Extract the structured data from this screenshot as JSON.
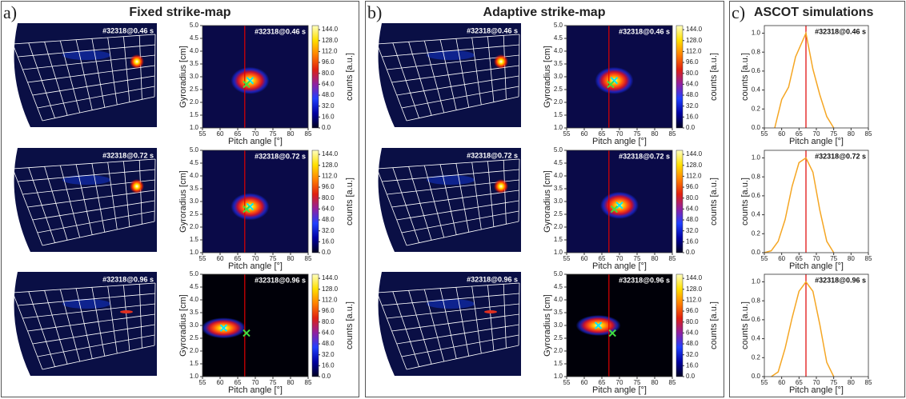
{
  "panels": [
    {
      "label": "a)",
      "title": "Fixed strike-map"
    },
    {
      "label": "b)",
      "title": "Adaptive strike-map"
    },
    {
      "label": "c)",
      "title": "ASCOT simulations"
    }
  ],
  "chart_data": [
    {
      "type": "heatmap",
      "image_label": "#32318@0.46 s",
      "label": "#32318@0.46 s",
      "xlabel": "Pitch angle [°]",
      "ylabel": "Gyroradius [cm]",
      "colorbar_label": "counts [a.u.]",
      "xlim": [
        55,
        85
      ],
      "ylim": [
        1,
        5
      ],
      "xticks": [
        55,
        60,
        65,
        70,
        75,
        80,
        85
      ],
      "yticks": [
        {
          "value": 1,
          "label": "1.0"
        },
        {
          "value": 1.5,
          "label": "1.5"
        },
        {
          "value": 2,
          "label": "2.0"
        },
        {
          "value": 2.5,
          "label": "2.5"
        },
        {
          "value": 3,
          "label": "3.0"
        },
        {
          "value": 3.5,
          "label": "3.5"
        },
        {
          "value": 4,
          "label": "4.0"
        },
        {
          "value": 4.5,
          "label": "4.5"
        },
        {
          "value": 5,
          "label": "5.0"
        }
      ],
      "clim": [
        0,
        150
      ],
      "cticks": [
        {
          "value": 0,
          "label": "0.0"
        },
        {
          "value": 16,
          "label": "16.0"
        },
        {
          "value": 32,
          "label": "32.0"
        },
        {
          "value": 48,
          "label": "48.0"
        },
        {
          "value": 64,
          "label": "64.0"
        },
        {
          "value": 80,
          "label": "80.0"
        },
        {
          "value": 96,
          "label": "96.0"
        },
        {
          "value": 112,
          "label": "112.0"
        },
        {
          "value": 128,
          "label": "128.0"
        },
        {
          "value": 144,
          "label": "144.0"
        }
      ],
      "colormap": [
        "#000020",
        "#0000a0",
        "#2040ff",
        "#9020a0",
        "#e02010",
        "#ff8000",
        "#ffe000",
        "#ffffc0"
      ],
      "background": "#0a0a48",
      "reference_x": 67,
      "reference_color": "#e00000",
      "markers": [
        {
          "x": 68.5,
          "y": 2.85,
          "color": "#00e5ff"
        },
        {
          "x": 67.5,
          "y": 2.7,
          "color": "#40e040"
        }
      ]
    },
    {
      "type": "heatmap",
      "image_label": "#32318@0.72 s",
      "label": "#32318@0.72 s",
      "xlabel": "Pitch angle [°]",
      "ylabel": "Gyroradius [cm]",
      "colorbar_label": "counts [a.u.]",
      "xlim": [
        55,
        85
      ],
      "ylim": [
        1,
        5
      ],
      "xticks": [
        55,
        60,
        65,
        70,
        75,
        80,
        85
      ],
      "yticks": [
        {
          "value": 1,
          "label": "1.0"
        },
        {
          "value": 1.5,
          "label": "1.5"
        },
        {
          "value": 2,
          "label": "2.0"
        },
        {
          "value": 2.5,
          "label": "2.5"
        },
        {
          "value": 3,
          "label": "3.0"
        },
        {
          "value": 3.5,
          "label": "3.5"
        },
        {
          "value": 4,
          "label": "4.0"
        },
        {
          "value": 4.5,
          "label": "4.5"
        },
        {
          "value": 5,
          "label": "5.0"
        }
      ],
      "clim": [
        0,
        150
      ],
      "cticks": [
        {
          "value": 0,
          "label": "0.0"
        },
        {
          "value": 16,
          "label": "16.0"
        },
        {
          "value": 32,
          "label": "32.0"
        },
        {
          "value": 48,
          "label": "48.0"
        },
        {
          "value": 64,
          "label": "64.0"
        },
        {
          "value": 80,
          "label": "80.0"
        },
        {
          "value": 96,
          "label": "96.0"
        },
        {
          "value": 112,
          "label": "112.0"
        },
        {
          "value": 128,
          "label": "128.0"
        },
        {
          "value": 144,
          "label": "144.0"
        }
      ],
      "colormap": [
        "#000020",
        "#0000a0",
        "#2040ff",
        "#9020a0",
        "#e02010",
        "#ff8000",
        "#ffe000",
        "#ffffc0"
      ],
      "background": "#0a0a48",
      "reference_x": 67,
      "reference_color": "#e00000",
      "markers": [
        {
          "x": 68.5,
          "y": 2.8,
          "color": "#00e5ff"
        },
        {
          "x": 67.5,
          "y": 2.7,
          "color": "#40e040"
        }
      ]
    },
    {
      "type": "heatmap",
      "image_label": "#32318@0.96 s",
      "label": "#32318@0.96 s",
      "xlabel": "Pitch angle [°]",
      "ylabel": "Gyroradius [cm]",
      "colorbar_label": "counts [a.u.]",
      "xlim": [
        55,
        85
      ],
      "ylim": [
        1,
        5
      ],
      "xticks": [
        55,
        60,
        65,
        70,
        75,
        80,
        85
      ],
      "yticks": [
        {
          "value": 1,
          "label": "1.0"
        },
        {
          "value": 1.5,
          "label": "1.5"
        },
        {
          "value": 2,
          "label": "2.0"
        },
        {
          "value": 2.5,
          "label": "2.5"
        },
        {
          "value": 3,
          "label": "3.0"
        },
        {
          "value": 3.5,
          "label": "3.5"
        },
        {
          "value": 4,
          "label": "4.0"
        },
        {
          "value": 4.5,
          "label": "4.5"
        },
        {
          "value": 5,
          "label": "5.0"
        }
      ],
      "clim": [
        0,
        150
      ],
      "cticks": [
        {
          "value": 0,
          "label": "0.0"
        },
        {
          "value": 16,
          "label": "16.0"
        },
        {
          "value": 32,
          "label": "32.0"
        },
        {
          "value": 48,
          "label": "48.0"
        },
        {
          "value": 64,
          "label": "64.0"
        },
        {
          "value": 80,
          "label": "80.0"
        },
        {
          "value": 96,
          "label": "96.0"
        },
        {
          "value": 112,
          "label": "112.0"
        },
        {
          "value": 128,
          "label": "128.0"
        },
        {
          "value": 144,
          "label": "144.0"
        }
      ],
      "colormap": [
        "#000020",
        "#0000a0",
        "#2040ff",
        "#9020a0",
        "#e02010",
        "#ff8000",
        "#ffe000",
        "#ffffc0"
      ],
      "background": "#000008",
      "reference_x": 67,
      "reference_color": "#e00000",
      "markers": [
        {
          "x": 61,
          "y": 2.9,
          "color": "#00e5ff"
        },
        {
          "x": 67.5,
          "y": 2.7,
          "color": "#40e040"
        }
      ]
    },
    {
      "type": "heatmap",
      "image_label": "#32318@0.46 s",
      "label": "#32318@0.46 s",
      "xlabel": "Pitch angle [°]",
      "ylabel": "Gyroradius [cm]",
      "colorbar_label": "counts [a.u.]",
      "xlim": [
        55,
        85
      ],
      "ylim": [
        1,
        5
      ],
      "xticks": [
        55,
        60,
        65,
        70,
        75,
        80,
        85
      ],
      "yticks": [
        {
          "value": 1,
          "label": "1.0"
        },
        {
          "value": 1.5,
          "label": "1.5"
        },
        {
          "value": 2,
          "label": "2.0"
        },
        {
          "value": 2.5,
          "label": "2.5"
        },
        {
          "value": 3,
          "label": "3.0"
        },
        {
          "value": 3.5,
          "label": "3.5"
        },
        {
          "value": 4,
          "label": "4.0"
        },
        {
          "value": 4.5,
          "label": "4.5"
        },
        {
          "value": 5,
          "label": "5.0"
        }
      ],
      "clim": [
        0,
        150
      ],
      "cticks": [
        {
          "value": 0,
          "label": "0.0"
        },
        {
          "value": 16,
          "label": "16.0"
        },
        {
          "value": 32,
          "label": "32.0"
        },
        {
          "value": 48,
          "label": "48.0"
        },
        {
          "value": 64,
          "label": "64.0"
        },
        {
          "value": 80,
          "label": "80.0"
        },
        {
          "value": 96,
          "label": "96.0"
        },
        {
          "value": 112,
          "label": "112.0"
        },
        {
          "value": 128,
          "label": "128.0"
        },
        {
          "value": 144,
          "label": "144.0"
        }
      ],
      "colormap": [
        "#000020",
        "#0000a0",
        "#2040ff",
        "#9020a0",
        "#e02010",
        "#ff8000",
        "#ffe000",
        "#ffffc0"
      ],
      "background": "#0a0a48",
      "reference_x": 67,
      "reference_color": "#e00000",
      "markers": [
        {
          "x": 68.5,
          "y": 2.85,
          "color": "#00e5ff"
        },
        {
          "x": 67.5,
          "y": 2.7,
          "color": "#40e040"
        }
      ]
    },
    {
      "type": "heatmap",
      "image_label": "#32318@0.72 s",
      "label": "#32318@0.72 s",
      "xlabel": "Pitch angle [°]",
      "ylabel": "Gyroradius [cm]",
      "colorbar_label": "counts [a.u.]",
      "xlim": [
        55,
        85
      ],
      "ylim": [
        1,
        5
      ],
      "xticks": [
        55,
        60,
        65,
        70,
        75,
        80,
        85
      ],
      "yticks": [
        {
          "value": 1,
          "label": "1.0"
        },
        {
          "value": 1.5,
          "label": "1.5"
        },
        {
          "value": 2,
          "label": "2.0"
        },
        {
          "value": 2.5,
          "label": "2.5"
        },
        {
          "value": 3,
          "label": "3.0"
        },
        {
          "value": 3.5,
          "label": "3.5"
        },
        {
          "value": 4,
          "label": "4.0"
        },
        {
          "value": 4.5,
          "label": "4.5"
        },
        {
          "value": 5,
          "label": "5.0"
        }
      ],
      "clim": [
        0,
        150
      ],
      "cticks": [
        {
          "value": 0,
          "label": "0.0"
        },
        {
          "value": 16,
          "label": "16.0"
        },
        {
          "value": 32,
          "label": "32.0"
        },
        {
          "value": 48,
          "label": "48.0"
        },
        {
          "value": 64,
          "label": "64.0"
        },
        {
          "value": 80,
          "label": "80.0"
        },
        {
          "value": 96,
          "label": "96.0"
        },
        {
          "value": 112,
          "label": "112.0"
        },
        {
          "value": 128,
          "label": "128.0"
        },
        {
          "value": 144,
          "label": "144.0"
        }
      ],
      "colormap": [
        "#000020",
        "#0000a0",
        "#2040ff",
        "#9020a0",
        "#e02010",
        "#ff8000",
        "#ffe000",
        "#ffffc0"
      ],
      "background": "#0a0a48",
      "reference_x": 67,
      "reference_color": "#e00000",
      "markers": [
        {
          "x": 70,
          "y": 2.85,
          "color": "#00e5ff"
        },
        {
          "x": 68.5,
          "y": 2.7,
          "color": "#40e040"
        }
      ]
    },
    {
      "type": "heatmap",
      "image_label": "#32318@0.96 s",
      "label": "#32318@0.96 s",
      "xlabel": "Pitch angle [°]",
      "ylabel": "Gyroradius [cm]",
      "colorbar_label": "counts [a.u.]",
      "xlim": [
        55,
        85
      ],
      "ylim": [
        1,
        5
      ],
      "xticks": [
        55,
        60,
        65,
        70,
        75,
        80,
        85
      ],
      "yticks": [
        {
          "value": 1,
          "label": "1.0"
        },
        {
          "value": 1.5,
          "label": "1.5"
        },
        {
          "value": 2,
          "label": "2.0"
        },
        {
          "value": 2.5,
          "label": "2.5"
        },
        {
          "value": 3,
          "label": "3.0"
        },
        {
          "value": 3.5,
          "label": "3.5"
        },
        {
          "value": 4,
          "label": "4.0"
        },
        {
          "value": 4.5,
          "label": "4.5"
        },
        {
          "value": 5,
          "label": "5.0"
        }
      ],
      "clim": [
        0,
        150
      ],
      "cticks": [
        {
          "value": 0,
          "label": "0.0"
        },
        {
          "value": 16,
          "label": "16.0"
        },
        {
          "value": 32,
          "label": "32.0"
        },
        {
          "value": 48,
          "label": "48.0"
        },
        {
          "value": 64,
          "label": "64.0"
        },
        {
          "value": 80,
          "label": "80.0"
        },
        {
          "value": 96,
          "label": "96.0"
        },
        {
          "value": 112,
          "label": "112.0"
        },
        {
          "value": 128,
          "label": "128.0"
        },
        {
          "value": 144,
          "label": "144.0"
        }
      ],
      "colormap": [
        "#000020",
        "#0000a0",
        "#2040ff",
        "#9020a0",
        "#e02010",
        "#ff8000",
        "#ffe000",
        "#ffffc0"
      ],
      "background": "#000008",
      "reference_x": 67,
      "reference_color": "#e00000",
      "markers": [
        {
          "x": 64,
          "y": 3.0,
          "color": "#00e5ff"
        },
        {
          "x": 68,
          "y": 2.7,
          "color": "#40e040"
        }
      ]
    },
    {
      "type": "line",
      "label": "#32318@0.46 s",
      "xlabel": "Pitch angle [°]",
      "ylabel": "counts [a.u.]",
      "xlim": [
        55,
        85
      ],
      "ylim": [
        0,
        1.08
      ],
      "xticks": [
        55,
        60,
        65,
        70,
        75,
        80,
        85
      ],
      "yticks": [
        {
          "value": 0,
          "label": "0.0"
        },
        {
          "value": 0.2,
          "label": "0.2"
        },
        {
          "value": 0.4,
          "label": "0.4"
        },
        {
          "value": 0.6,
          "label": "0.6"
        },
        {
          "value": 0.8,
          "label": "0.8"
        },
        {
          "value": 1,
          "label": "1.0"
        }
      ],
      "x": [
        58,
        60,
        62,
        64,
        67,
        69,
        71,
        73,
        75
      ],
      "values": [
        0,
        0.3,
        0.43,
        0.75,
        1.0,
        0.62,
        0.35,
        0.12,
        0
      ],
      "color": "#f5a623",
      "reference_x": 67,
      "reference_color": "#e00000"
    },
    {
      "type": "line",
      "label": "#32318@0.72 s",
      "xlabel": "Pitch angle [°]",
      "ylabel": "counts [a.u.]",
      "xlim": [
        55,
        85
      ],
      "ylim": [
        0,
        1.08
      ],
      "xticks": [
        55,
        60,
        65,
        70,
        75,
        80,
        85
      ],
      "yticks": [
        {
          "value": 0,
          "label": "0.0"
        },
        {
          "value": 0.2,
          "label": "0.2"
        },
        {
          "value": 0.4,
          "label": "0.4"
        },
        {
          "value": 0.6,
          "label": "0.6"
        },
        {
          "value": 0.8,
          "label": "0.8"
        },
        {
          "value": 1,
          "label": "1.0"
        }
      ],
      "x": [
        55,
        57,
        59,
        61,
        63,
        65,
        67,
        69,
        71,
        73,
        75
      ],
      "values": [
        0,
        0.02,
        0.12,
        0.35,
        0.7,
        0.95,
        1.0,
        0.85,
        0.45,
        0.12,
        0
      ],
      "color": "#f5a623",
      "reference_x": 67,
      "reference_color": "#e00000"
    },
    {
      "type": "line",
      "label": "#32318@0.96 s",
      "xlabel": "Pitch angle [°]",
      "ylabel": "counts [a.u.]",
      "xlim": [
        55,
        85
      ],
      "ylim": [
        0,
        1.08
      ],
      "xticks": [
        55,
        60,
        65,
        70,
        75,
        80,
        85
      ],
      "yticks": [
        {
          "value": 0,
          "label": "0.0"
        },
        {
          "value": 0.2,
          "label": "0.2"
        },
        {
          "value": 0.4,
          "label": "0.4"
        },
        {
          "value": 0.6,
          "label": "0.6"
        },
        {
          "value": 0.8,
          "label": "0.8"
        },
        {
          "value": 1,
          "label": "1.0"
        }
      ],
      "x": [
        57,
        59,
        61,
        63,
        65,
        67,
        69,
        71,
        73,
        75
      ],
      "values": [
        0,
        0.05,
        0.3,
        0.62,
        0.9,
        1.0,
        0.9,
        0.55,
        0.15,
        0
      ],
      "color": "#f5a623",
      "reference_x": 67,
      "reference_color": "#e00000"
    }
  ]
}
